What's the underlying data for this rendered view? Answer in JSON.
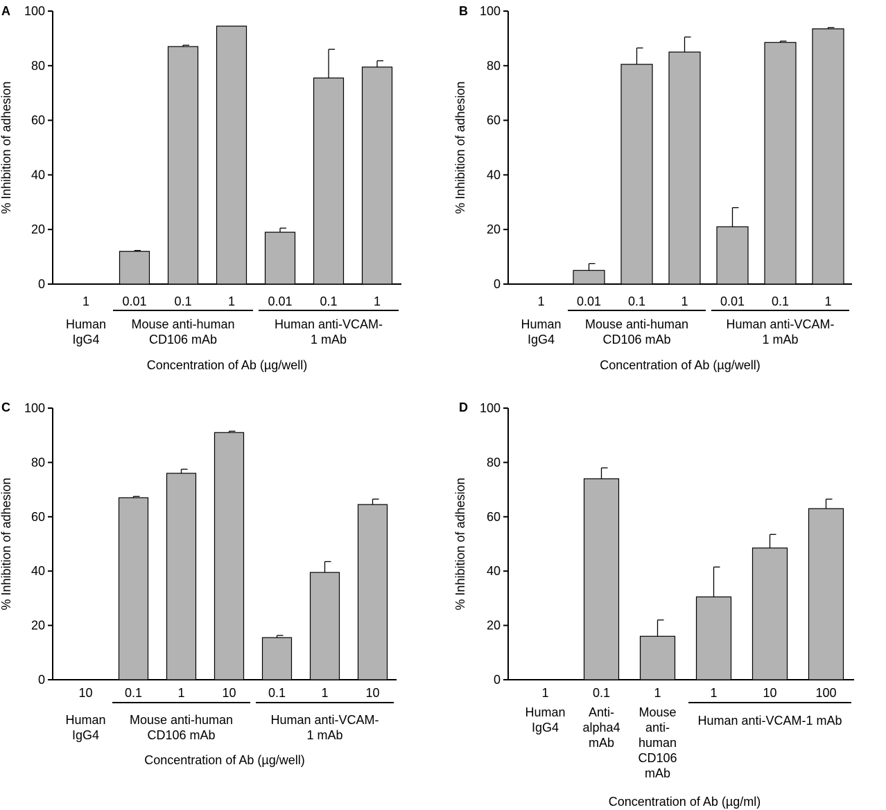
{
  "chart_data": [
    {
      "type": "bar",
      "panel": "A",
      "ylabel": "% Inhibition of adhesion",
      "xlabel": "Concentration of Ab (µg/well)",
      "ylim": [
        0,
        100
      ],
      "yticks": [
        "0",
        "20",
        "40",
        "60",
        "80",
        "100"
      ],
      "categories": [
        "1",
        "0.01",
        "0.1",
        "1",
        "0.01",
        "0.1",
        "1"
      ],
      "values": [
        0,
        12,
        87,
        94.5,
        19,
        75.5,
        79.5
      ],
      "errors": [
        0,
        0.3,
        0.5,
        0,
        1.5,
        10.5,
        2.3
      ],
      "groups": [
        {
          "label": [
            "Human",
            "IgG4"
          ],
          "from": 0,
          "to": 0,
          "underline": false
        },
        {
          "label": [
            "Mouse anti-human",
            "CD106  mAb"
          ],
          "from": 1,
          "to": 3,
          "underline": true
        },
        {
          "label": [
            "Human anti-VCAM-",
            "1 mAb"
          ],
          "from": 4,
          "to": 6,
          "underline": true
        }
      ]
    },
    {
      "type": "bar",
      "panel": "B",
      "ylabel": "% Inhibition of adhesion",
      "xlabel": "Concentration of Ab (µg/well)",
      "ylim": [
        0,
        100
      ],
      "yticks": [
        "0",
        "20",
        "40",
        "60",
        "80",
        "100"
      ],
      "categories": [
        "1",
        "0.01",
        "0.1",
        "1",
        "0.01",
        "0.1",
        "1"
      ],
      "values": [
        0,
        5,
        80.5,
        85,
        21,
        88.5,
        93.5
      ],
      "errors": [
        0,
        2.5,
        6,
        5.5,
        7,
        0.5,
        0.5
      ],
      "groups": [
        {
          "label": [
            "Human",
            "IgG4"
          ],
          "from": 0,
          "to": 0,
          "underline": false
        },
        {
          "label": [
            "Mouse anti-human",
            "CD106  mAb"
          ],
          "from": 1,
          "to": 3,
          "underline": true
        },
        {
          "label": [
            "Human anti-VCAM-",
            "1 mAb"
          ],
          "from": 4,
          "to": 6,
          "underline": true
        }
      ]
    },
    {
      "type": "bar",
      "panel": "C",
      "ylabel": "% Inhibition of adhesion",
      "xlabel": "Concentration of Ab (µg/well)",
      "ylim": [
        0,
        100
      ],
      "yticks": [
        "0",
        "20",
        "40",
        "60",
        "80",
        "100"
      ],
      "categories": [
        "10",
        "0.1",
        "1",
        "10",
        "0.1",
        "1",
        "10"
      ],
      "values": [
        0,
        67,
        76,
        91,
        15.5,
        39.5,
        64.5
      ],
      "errors": [
        0,
        0.5,
        1.5,
        0.5,
        0.8,
        4,
        2
      ],
      "groups": [
        {
          "label": [
            "Human",
            "IgG4"
          ],
          "from": 0,
          "to": 0,
          "underline": false
        },
        {
          "label": [
            "Mouse anti-human",
            "CD106  mAb"
          ],
          "from": 1,
          "to": 3,
          "underline": true
        },
        {
          "label": [
            "Human anti-VCAM-",
            "1 mAb"
          ],
          "from": 4,
          "to": 6,
          "underline": true
        }
      ]
    },
    {
      "type": "bar",
      "panel": "D",
      "ylabel": "% Inhibition of adhesion",
      "xlabel": "Concentration of Ab (µg/ml)",
      "ylim": [
        0,
        100
      ],
      "yticks": [
        "0",
        "20",
        "40",
        "60",
        "80",
        "100"
      ],
      "categories": [
        "1",
        "0.1",
        "1",
        "1",
        "10",
        "100"
      ],
      "values": [
        0,
        74,
        16,
        30.5,
        48.5,
        63
      ],
      "errors": [
        0,
        4,
        6,
        11,
        5,
        3.5
      ],
      "groups": [
        {
          "label": [
            "Human",
            "IgG4"
          ],
          "from": 0,
          "to": 0,
          "underline": false
        },
        {
          "label": [
            "Anti-",
            "alpha4",
            "mAb"
          ],
          "from": 1,
          "to": 1,
          "underline": false
        },
        {
          "label": [
            "Mouse",
            "anti-",
            "human",
            "CD106",
            "mAb"
          ],
          "from": 2,
          "to": 2,
          "underline": false
        },
        {
          "label": [
            "Human anti-VCAM-1 mAb"
          ],
          "from": 3,
          "to": 5,
          "underline": true
        }
      ]
    }
  ]
}
